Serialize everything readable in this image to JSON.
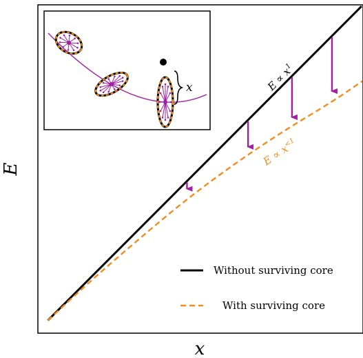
{
  "chart_data": {
    "type": "line",
    "xlabel": "x",
    "ylabel": "E",
    "xlim": [
      0,
      1
    ],
    "ylim": [
      0,
      1
    ],
    "grid": false,
    "ticks": "none",
    "legend_position": "bottom-right",
    "series": [
      {
        "name": "Without surviving core",
        "color": "#000000",
        "style": "solid",
        "x": [
          0.02,
          0.3,
          0.6,
          0.985
        ],
        "y": [
          0.02,
          0.3,
          0.6,
          0.985
        ]
      },
      {
        "name": "With surviving core",
        "color": "#f28c1e",
        "style": "dashed",
        "x": [
          0.02,
          0.15,
          0.3,
          0.45,
          0.6,
          0.75,
          0.9,
          1.0
        ],
        "y": [
          0.02,
          0.14,
          0.27,
          0.395,
          0.505,
          0.605,
          0.695,
          0.755
        ]
      }
    ],
    "arrows": [
      {
        "x": 0.448,
        "from": 0.448,
        "to": 0.403
      },
      {
        "x": 0.636,
        "from": 0.636,
        "to": 0.532
      },
      {
        "x": 0.771,
        "from": 0.771,
        "to": 0.623
      },
      {
        "x": 0.894,
        "from": 0.894,
        "to": 0.703
      }
    ],
    "annotations": [
      {
        "id": "linear",
        "text": "E ∝ x",
        "sup": "1",
        "color": "#000000"
      },
      {
        "id": "sublinear",
        "text": "E ∝ x",
        "sup": "<1",
        "color": "#f28c1e"
      }
    ],
    "inset": {
      "label": "x",
      "colors": {
        "curve": "#a020a0",
        "ring": "#f28c1e",
        "outline": "#000000"
      }
    }
  }
}
